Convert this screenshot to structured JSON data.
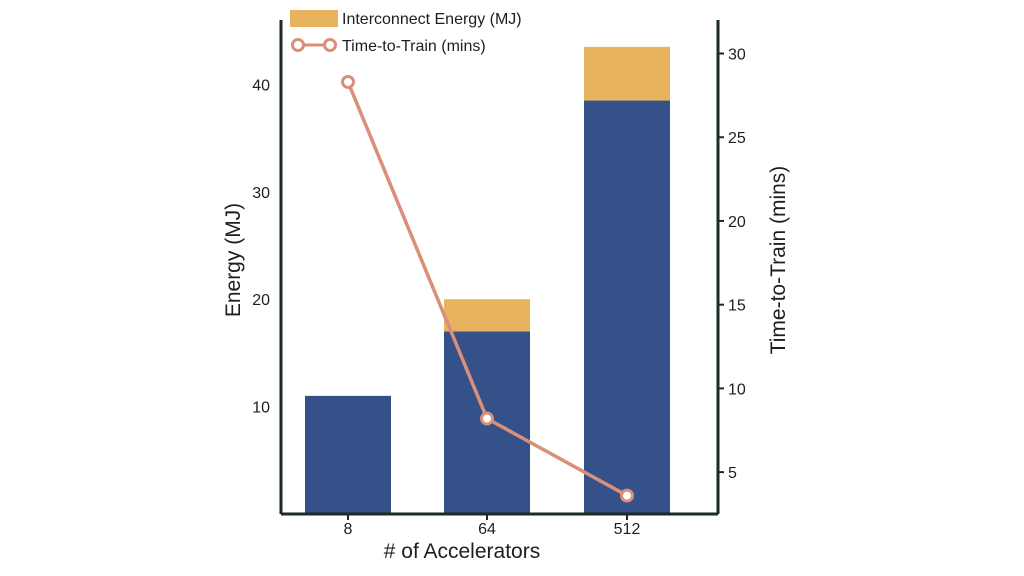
{
  "chart_data": {
    "type": "bar",
    "subtype": "stacked bar with secondary-axis line",
    "categories": [
      "8",
      "64",
      "512"
    ],
    "xlabel": "# of Accelerators",
    "ylabel_left": "Energy (MJ)",
    "ylabel_right": "Time-to-Train (mins)",
    "left_ticks": [
      "10",
      "20",
      "30",
      "40"
    ],
    "right_ticks": [
      "5",
      "10",
      "15",
      "20",
      "25",
      "30"
    ],
    "ylim_left": [
      0,
      46
    ],
    "ylim_right": [
      2.5,
      32
    ],
    "grid": false,
    "legend_position": "top-left",
    "bar_series": [
      {
        "name": "",
        "color": "#34518a",
        "values": [
          11.0,
          17.0,
          38.5
        ]
      },
      {
        "name": "Interconnect Energy (MJ)",
        "color": "#e8b35f",
        "values": [
          0,
          3.0,
          5.0
        ]
      }
    ],
    "line_series": [
      {
        "name": "Time-to-Train (mins)",
        "color": "#d98f78",
        "axis": "right",
        "values": [
          28.3,
          8.2,
          3.6
        ]
      }
    ]
  },
  "colors": {
    "axis": "#1b2a22",
    "bar_base": "#34518a",
    "interconnect": "#e8b35f",
    "line": "#d98f78"
  }
}
